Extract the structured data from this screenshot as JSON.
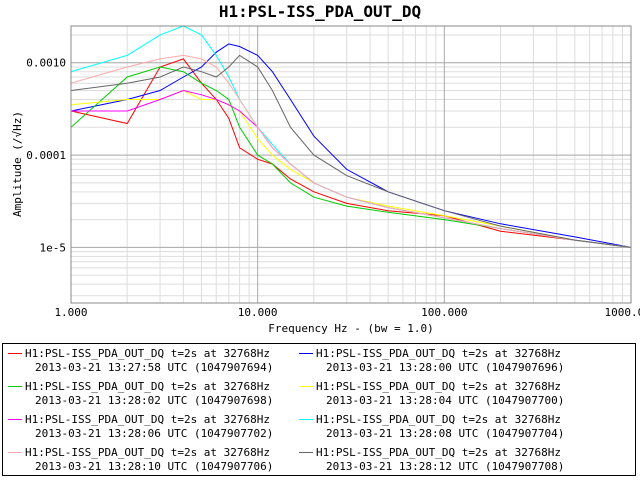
{
  "chart_data": {
    "type": "line",
    "title": "H1:PSL-ISS_PDA_OUT_DQ",
    "xlabel": "Frequency Hz - (bw = 1.0)",
    "ylabel": "Amplitude  (/√Hz)",
    "x_scale": "log",
    "y_scale": "log",
    "xlim": [
      1,
      1000
    ],
    "ylim": [
      2.5e-06,
      0.0025
    ],
    "grid": true,
    "legend_position": "bottom",
    "x_ticks": [
      {
        "value": 1,
        "label": "1.000"
      },
      {
        "value": 10,
        "label": "10.000"
      },
      {
        "value": 100,
        "label": "100.000"
      },
      {
        "value": 1000,
        "label": "1000.000"
      }
    ],
    "y_ticks": [
      {
        "value": 0.001,
        "label": "0.0010"
      },
      {
        "value": 0.0001,
        "label": "0.0001"
      },
      {
        "value": 1e-05,
        "label": "1e-5"
      }
    ],
    "series": [
      {
        "name": "H1:PSL-ISS_PDA_OUT_DQ t=2s at 32768Hz",
        "subtitle": "2013-03-21 13:27:58 UTC (1047907694)",
        "color": "#ff0000",
        "x": [
          1,
          2,
          3,
          4,
          5,
          6,
          7,
          8,
          10,
          12,
          15,
          20,
          30,
          50,
          100,
          200,
          500,
          1000
        ],
        "y": [
          0.0003,
          0.00022,
          0.0009,
          0.0011,
          0.0006,
          0.0004,
          0.00025,
          0.00012,
          9e-05,
          8e-05,
          5.5e-05,
          4e-05,
          3e-05,
          2.5e-05,
          2.2e-05,
          1.5e-05,
          1.2e-05,
          1e-05
        ]
      },
      {
        "name": "H1:PSL-ISS_PDA_OUT_DQ t=2s at 32768Hz",
        "subtitle": "2013-03-21 13:28:00 UTC (1047907696)",
        "color": "#0000ff",
        "x": [
          1,
          2,
          3,
          4,
          5,
          6,
          7,
          8,
          10,
          12,
          15,
          20,
          30,
          50,
          100,
          200,
          500,
          1000
        ],
        "y": [
          0.0003,
          0.0004,
          0.0005,
          0.0007,
          0.0009,
          0.0013,
          0.0016,
          0.0015,
          0.0012,
          0.0008,
          0.0004,
          0.00016,
          7e-05,
          4e-05,
          2.5e-05,
          1.8e-05,
          1.3e-05,
          1e-05
        ]
      },
      {
        "name": "H1:PSL-ISS_PDA_OUT_DQ t=2s at 32768Hz",
        "subtitle": "2013-03-21 13:28:02 UTC (1047907698)",
        "color": "#00cc00",
        "x": [
          1,
          2,
          3,
          4,
          5,
          6,
          7,
          8,
          10,
          12,
          15,
          20,
          30,
          50,
          100,
          200,
          500,
          1000
        ],
        "y": [
          0.0002,
          0.0007,
          0.0009,
          0.0008,
          0.0006,
          0.0005,
          0.0004,
          0.0002,
          0.0001,
          8e-05,
          5e-05,
          3.5e-05,
          2.8e-05,
          2.4e-05,
          2e-05,
          1.6e-05,
          1.2e-05,
          1e-05
        ]
      },
      {
        "name": "H1:PSL-ISS_PDA_OUT_DQ t=2s at 32768Hz",
        "subtitle": "2013-03-21 13:28:04 UTC (1047907700)",
        "color": "#ffff00",
        "x": [
          1,
          2,
          3,
          4,
          5,
          6,
          7,
          8,
          10,
          12,
          15,
          20,
          30,
          50,
          100,
          200,
          500,
          1000
        ],
        "y": [
          0.00035,
          0.0004,
          0.0004,
          0.0005,
          0.0004,
          0.0004,
          0.00035,
          0.0003,
          0.00015,
          0.0001,
          7e-05,
          5e-05,
          3.5e-05,
          2.8e-05,
          2.2e-05,
          1.7e-05,
          1.2e-05,
          1e-05
        ]
      },
      {
        "name": "H1:PSL-ISS_PDA_OUT_DQ t=2s at 32768Hz",
        "subtitle": "2013-03-21 13:28:06 UTC (1047907702)",
        "color": "#ff00ff",
        "x": [
          1,
          2,
          3,
          4,
          5,
          6,
          7,
          8,
          10,
          12,
          15,
          20,
          30,
          50,
          100,
          200,
          500,
          1000
        ],
        "y": [
          0.0003,
          0.0003,
          0.0004,
          0.0005,
          0.00045,
          0.0004,
          0.00035,
          0.0003,
          0.0002,
          0.00012,
          8e-05,
          5e-05,
          3.5e-05,
          2.7e-05,
          2.1e-05,
          1.6e-05,
          1.2e-05,
          1e-05
        ]
      },
      {
        "name": "H1:PSL-ISS_PDA_OUT_DQ t=2s at 32768Hz",
        "subtitle": "2013-03-21 13:28:08 UTC (1047907704)",
        "color": "#00ffff",
        "x": [
          1,
          2,
          3,
          4,
          5,
          6,
          7,
          8,
          10,
          12,
          15,
          20,
          30,
          50,
          100,
          200,
          500,
          1000
        ],
        "y": [
          0.0008,
          0.0012,
          0.002,
          0.0025,
          0.002,
          0.0012,
          0.0007,
          0.0004,
          0.0002,
          0.00013,
          8e-05,
          5e-05,
          3.5e-05,
          2.7e-05,
          2.1e-05,
          1.6e-05,
          1.2e-05,
          1e-05
        ]
      },
      {
        "name": "H1:PSL-ISS_PDA_OUT_DQ t=2s at 32768Hz",
        "subtitle": "2013-03-21 13:28:10 UTC (1047907706)",
        "color": "#ffaaaa",
        "x": [
          1,
          2,
          3,
          4,
          5,
          6,
          7,
          8,
          10,
          12,
          15,
          20,
          30,
          50,
          100,
          200,
          500,
          1000
        ],
        "y": [
          0.0006,
          0.0009,
          0.0011,
          0.0012,
          0.0011,
          0.0009,
          0.0006,
          0.0004,
          0.0002,
          0.00012,
          8e-05,
          5e-05,
          3.5e-05,
          2.7e-05,
          2.1e-05,
          1.6e-05,
          1.2e-05,
          1e-05
        ]
      },
      {
        "name": "H1:PSL-ISS_PDA_OUT_DQ t=2s at 32768Hz",
        "subtitle": "2013-03-21 13:28:12 UTC (1047907708)",
        "color": "#666666",
        "x": [
          1,
          2,
          3,
          4,
          5,
          6,
          7,
          8,
          10,
          12,
          15,
          20,
          30,
          50,
          100,
          200,
          500,
          1000
        ],
        "y": [
          0.0005,
          0.0006,
          0.0007,
          0.0009,
          0.0008,
          0.0007,
          0.0009,
          0.0012,
          0.0009,
          0.0005,
          0.0002,
          0.0001,
          6e-05,
          4e-05,
          2.5e-05,
          1.7e-05,
          1.2e-05,
          1e-05
        ]
      }
    ]
  }
}
